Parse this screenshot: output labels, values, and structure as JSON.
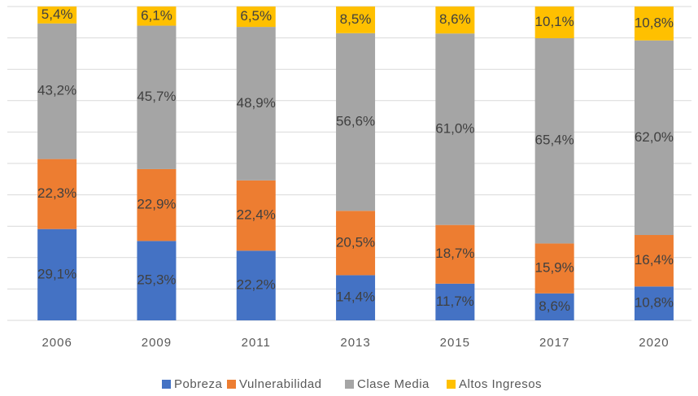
{
  "chart_data": {
    "type": "stacked_bar",
    "categories": [
      "2006",
      "2009",
      "2011",
      "2013",
      "2015",
      "2017",
      "2020"
    ],
    "series": [
      {
        "name": "Pobreza",
        "color": "#4472c4",
        "values": [
          29.1,
          25.3,
          22.2,
          14.4,
          11.7,
          8.6,
          10.8
        ],
        "value_labels": [
          "29,1%",
          "25,3%",
          "22,2%",
          "14,4%",
          "11,7%",
          "8,6%",
          "10,8%"
        ]
      },
      {
        "name": "Vulnerabilidad",
        "color": "#ed7d31",
        "values": [
          22.3,
          22.9,
          22.4,
          20.5,
          18.7,
          15.9,
          16.4
        ],
        "value_labels": [
          "22,3%",
          "22,9%",
          "22,4%",
          "20,5%",
          "18,7%",
          "15,9%",
          "16,4%"
        ]
      },
      {
        "name": "Clase Media",
        "color": "#a5a5a5",
        "values": [
          43.2,
          45.7,
          48.9,
          56.6,
          61.0,
          65.4,
          62.0
        ],
        "value_labels": [
          "43,2%",
          "45,7%",
          "48,9%",
          "56,6%",
          "61,0%",
          "65,4%",
          "62,0%"
        ]
      },
      {
        "name": "Altos Ingresos",
        "color": "#ffc000",
        "values": [
          5.4,
          6.1,
          6.5,
          8.5,
          8.6,
          10.1,
          10.8
        ],
        "value_labels": [
          "5,4%",
          "6,1%",
          "6,5%",
          "8,5%",
          "8,6%",
          "10,1%",
          "10,8%"
        ]
      }
    ],
    "ylim": [
      0,
      100
    ],
    "yticks": [
      0,
      10,
      20,
      30,
      40,
      50,
      60,
      70,
      80,
      90,
      100
    ],
    "grid": true,
    "legend": "bottom"
  }
}
